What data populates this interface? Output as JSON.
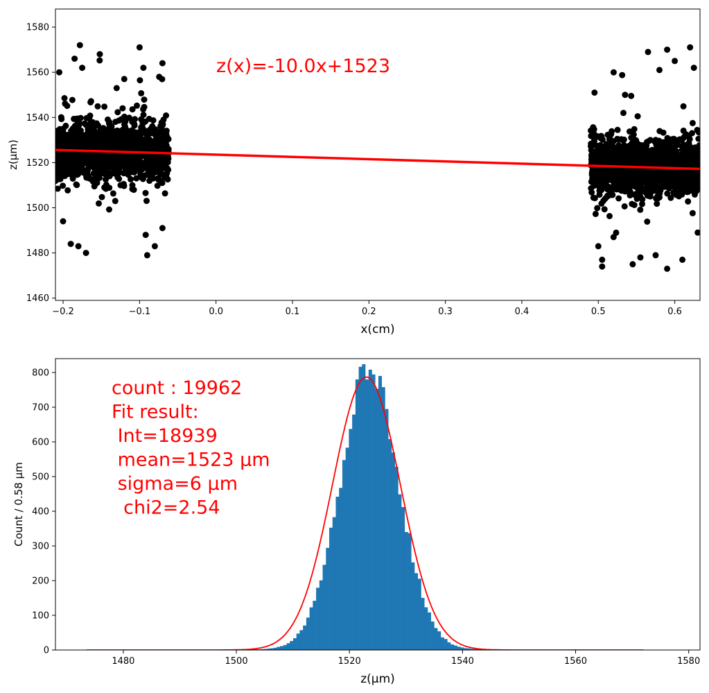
{
  "chart_data": [
    {
      "type": "scatter",
      "xlabel": "x(cm)",
      "ylabel": "z(μm)",
      "xlim": [
        -0.21,
        0.633
      ],
      "ylim": [
        1459,
        1588
      ],
      "xticks": [
        "−0.2",
        "−0.1",
        "0.0",
        "0.1",
        "0.2",
        "0.3",
        "0.4",
        "0.5",
        "0.6"
      ],
      "xtick_values": [
        -0.2,
        -0.1,
        0.0,
        0.1,
        0.2,
        0.3,
        0.4,
        0.5,
        0.6
      ],
      "yticks": [
        "1460",
        "1480",
        "1500",
        "1520",
        "1540",
        "1560",
        "1580"
      ],
      "ytick_values": [
        1460,
        1480,
        1500,
        1520,
        1540,
        1560,
        1580
      ],
      "annotation": "z(x)=-10.0x+1523",
      "point_color": "#000000",
      "fit_color": "#ff0000",
      "fit_line": {
        "slope": -10.0,
        "intercept": 1523,
        "x": [
          -0.21,
          0.633
        ],
        "y": [
          1525.6,
          1517.2
        ]
      },
      "clusters": [
        {
          "x_range": [
            -0.21,
            -0.062
          ],
          "center_y": 1525,
          "sigma": 6
        },
        {
          "x_range": [
            0.49,
            0.633
          ],
          "center_y": 1518,
          "sigma": 6
        }
      ],
      "outliers": [
        {
          "x": -0.178,
          "y": 1572
        },
        {
          "x": -0.152,
          "y": 1568
        },
        {
          "x": -0.1,
          "y": 1571
        },
        {
          "x": -0.185,
          "y": 1566
        },
        {
          "x": -0.175,
          "y": 1562
        },
        {
          "x": -0.07,
          "y": 1564
        },
        {
          "x": -0.19,
          "y": 1484
        },
        {
          "x": -0.18,
          "y": 1483
        },
        {
          "x": -0.17,
          "y": 1480
        },
        {
          "x": -0.09,
          "y": 1479
        },
        {
          "x": -0.092,
          "y": 1488
        },
        {
          "x": -0.08,
          "y": 1483
        },
        {
          "x": -0.2,
          "y": 1494
        },
        {
          "x": -0.12,
          "y": 1557
        },
        {
          "x": -0.095,
          "y": 1562
        },
        {
          "x": -0.205,
          "y": 1560
        },
        {
          "x": -0.13,
          "y": 1553
        },
        {
          "x": -0.07,
          "y": 1491
        },
        {
          "x": 0.505,
          "y": 1474
        },
        {
          "x": 0.59,
          "y": 1473
        },
        {
          "x": 0.61,
          "y": 1477
        },
        {
          "x": 0.545,
          "y": 1475
        },
        {
          "x": 0.59,
          "y": 1570
        },
        {
          "x": 0.62,
          "y": 1571
        },
        {
          "x": 0.565,
          "y": 1569
        },
        {
          "x": 0.625,
          "y": 1562
        },
        {
          "x": 0.535,
          "y": 1550
        },
        {
          "x": 0.495,
          "y": 1551
        },
        {
          "x": 0.6,
          "y": 1565
        },
        {
          "x": 0.5,
          "y": 1483
        },
        {
          "x": 0.52,
          "y": 1487
        },
        {
          "x": 0.575,
          "y": 1479
        },
        {
          "x": 0.505,
          "y": 1477
        },
        {
          "x": 0.63,
          "y": 1489
        },
        {
          "x": 0.58,
          "y": 1561
        },
        {
          "x": 0.555,
          "y": 1478
        }
      ]
    },
    {
      "type": "bar",
      "xlabel": "z(μm)",
      "ylabel": "Count / 0.58  μm",
      "xlim": [
        1468,
        1582
      ],
      "ylim": [
        0,
        840
      ],
      "xticks": [
        "1480",
        "1500",
        "1520",
        "1540",
        "1560",
        "1580"
      ],
      "xtick_values": [
        1480,
        1500,
        1520,
        1540,
        1560,
        1580
      ],
      "yticks": [
        "0",
        "100",
        "200",
        "300",
        "400",
        "500",
        "600",
        "700",
        "800"
      ],
      "ytick_values": [
        0,
        100,
        200,
        300,
        400,
        500,
        600,
        700,
        800
      ],
      "bar_color": "#1f77b4",
      "bin_width": 0.58,
      "hist_range": [
        1473.5,
        1577.5
      ],
      "core": {
        "mean": 1523.5,
        "sigma": 5.2,
        "peak": 800
      },
      "tails": {
        "amplitude": 8,
        "decay": 12
      },
      "fit": {
        "mean": 1523,
        "sigma": 6,
        "amplitude": 787,
        "x_range": [
          1473.5,
          1572
        ],
        "color": "#ff0000"
      },
      "annotation_lines": [
        "count : 19962",
        "Fit result:",
        " Int=18939",
        " mean=1523 μm",
        " sigma=6 μm",
        "  chi2=2.54"
      ]
    }
  ]
}
